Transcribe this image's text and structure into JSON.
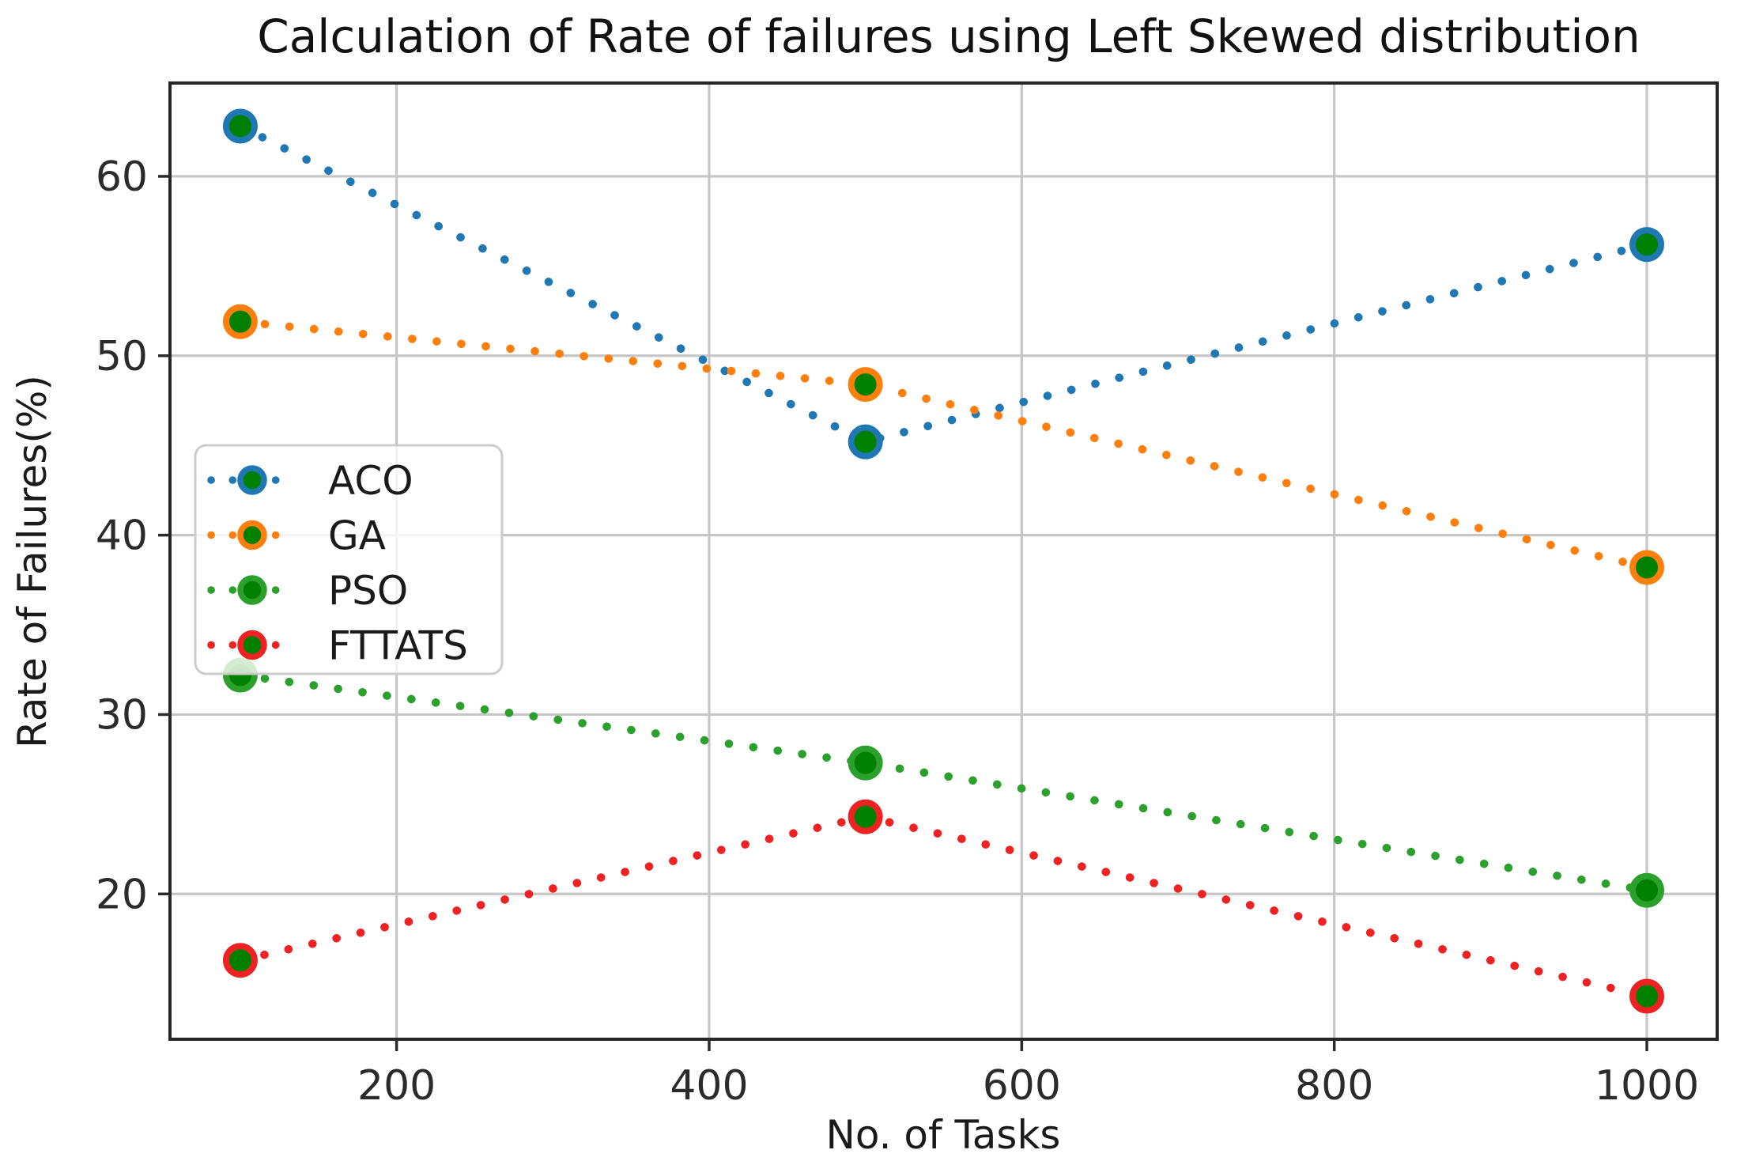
{
  "chart_data": {
    "type": "line",
    "title": "Calculation of Rate of failures using Left Skewed distribution",
    "xlabel": "No. of Tasks",
    "ylabel": "Rate of Failures(%)",
    "x": [
      100,
      500,
      1000
    ],
    "series": [
      {
        "name": "ACO",
        "color": "#1f77b4",
        "values": [
          62.8,
          45.2,
          56.2
        ]
      },
      {
        "name": "GA",
        "color": "#ff7f0e",
        "values": [
          51.9,
          48.4,
          38.2
        ]
      },
      {
        "name": "PSO",
        "color": "#2ca02c",
        "values": [
          32.2,
          27.3,
          20.2
        ]
      },
      {
        "name": "FTTATS",
        "color": "#ee2222",
        "values": [
          16.3,
          24.3,
          14.3
        ]
      }
    ],
    "marker_face_color": "#008000",
    "line_style": "dotted",
    "marker": "circle",
    "xlim": [
      55,
      1045
    ],
    "ylim": [
      11.9,
      65.2
    ],
    "xticks": [
      200,
      400,
      600,
      800,
      1000
    ],
    "yticks": [
      20,
      30,
      40,
      50,
      60
    ],
    "grid": true,
    "legend_position": "center-left",
    "legend_labels": [
      "ACO",
      "GA",
      "PSO",
      "FTTATS"
    ]
  }
}
